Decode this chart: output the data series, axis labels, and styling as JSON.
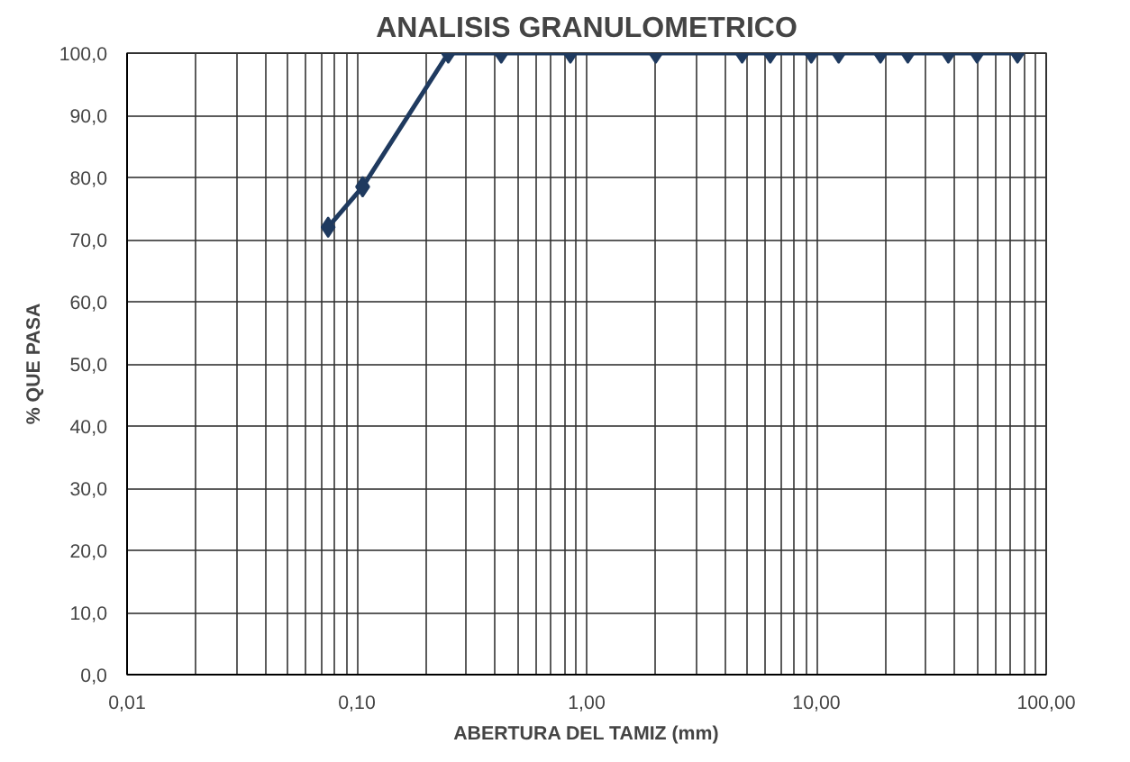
{
  "chart_data": {
    "type": "line",
    "title": "ANALISIS GRANULOMETRICO",
    "xlabel": "ABERTURA DEL TAMIZ (mm)",
    "ylabel": "% QUE PASA",
    "x": [
      0.075,
      0.106,
      0.25,
      0.425,
      0.85,
      2.0,
      4.75,
      6.3,
      9.5,
      12.5,
      19.0,
      25.0,
      37.5,
      50.0,
      75.0
    ],
    "series": [
      {
        "color": "#1f3a5f",
        "values": [
          72,
          78.5,
          100,
          100,
          100,
          100,
          100,
          100,
          100,
          100,
          100,
          100,
          100,
          100,
          100
        ]
      }
    ],
    "log": "x",
    "xlim": [
      0.01,
      100
    ],
    "ylim": [
      0,
      100
    ],
    "xticks": [
      {
        "value": 0.01,
        "label": "0,01"
      },
      {
        "value": 0.02,
        "label": null
      },
      {
        "value": 0.03,
        "label": null
      },
      {
        "value": 0.04,
        "label": null
      },
      {
        "value": 0.05,
        "label": null
      },
      {
        "value": 0.06,
        "label": null
      },
      {
        "value": 0.07,
        "label": null
      },
      {
        "value": 0.08,
        "label": null
      },
      {
        "value": 0.09,
        "label": null
      },
      {
        "value": 0.1,
        "label": "0,10"
      },
      {
        "value": 0.2,
        "label": null
      },
      {
        "value": 0.3,
        "label": null
      },
      {
        "value": 0.4,
        "label": null
      },
      {
        "value": 0.5,
        "label": null
      },
      {
        "value": 0.6,
        "label": null
      },
      {
        "value": 0.7,
        "label": null
      },
      {
        "value": 0.8,
        "label": null
      },
      {
        "value": 0.9,
        "label": null
      },
      {
        "value": 1,
        "label": "1,00"
      },
      {
        "value": 2,
        "label": null
      },
      {
        "value": 3,
        "label": null
      },
      {
        "value": 4,
        "label": null
      },
      {
        "value": 5,
        "label": null
      },
      {
        "value": 6,
        "label": null
      },
      {
        "value": 7,
        "label": null
      },
      {
        "value": 8,
        "label": null
      },
      {
        "value": 9,
        "label": null
      },
      {
        "value": 10,
        "label": "10,00"
      },
      {
        "value": 20,
        "label": null
      },
      {
        "value": 30,
        "label": null
      },
      {
        "value": 40,
        "label": null
      },
      {
        "value": 50,
        "label": null
      },
      {
        "value": 60,
        "label": null
      },
      {
        "value": 70,
        "label": null
      },
      {
        "value": 80,
        "label": null
      },
      {
        "value": 90,
        "label": null
      },
      {
        "value": 100,
        "label": "100,00"
      }
    ],
    "yticks": [
      {
        "value": 0,
        "label": "0,0"
      },
      {
        "value": 10,
        "label": "10,0"
      },
      {
        "value": 20,
        "label": "20,0"
      },
      {
        "value": 30,
        "label": "30,0"
      },
      {
        "value": 40,
        "label": "40,0"
      },
      {
        "value": 50,
        "label": "50,0"
      },
      {
        "value": 60,
        "label": "60,0"
      },
      {
        "value": 70,
        "label": "70,0"
      },
      {
        "value": 80,
        "label": "80,0"
      },
      {
        "value": 90,
        "label": "90,0"
      },
      {
        "value": 100,
        "label": "100,0"
      }
    ],
    "grid": true,
    "marker": "diamond",
    "line_style": "solid"
  }
}
